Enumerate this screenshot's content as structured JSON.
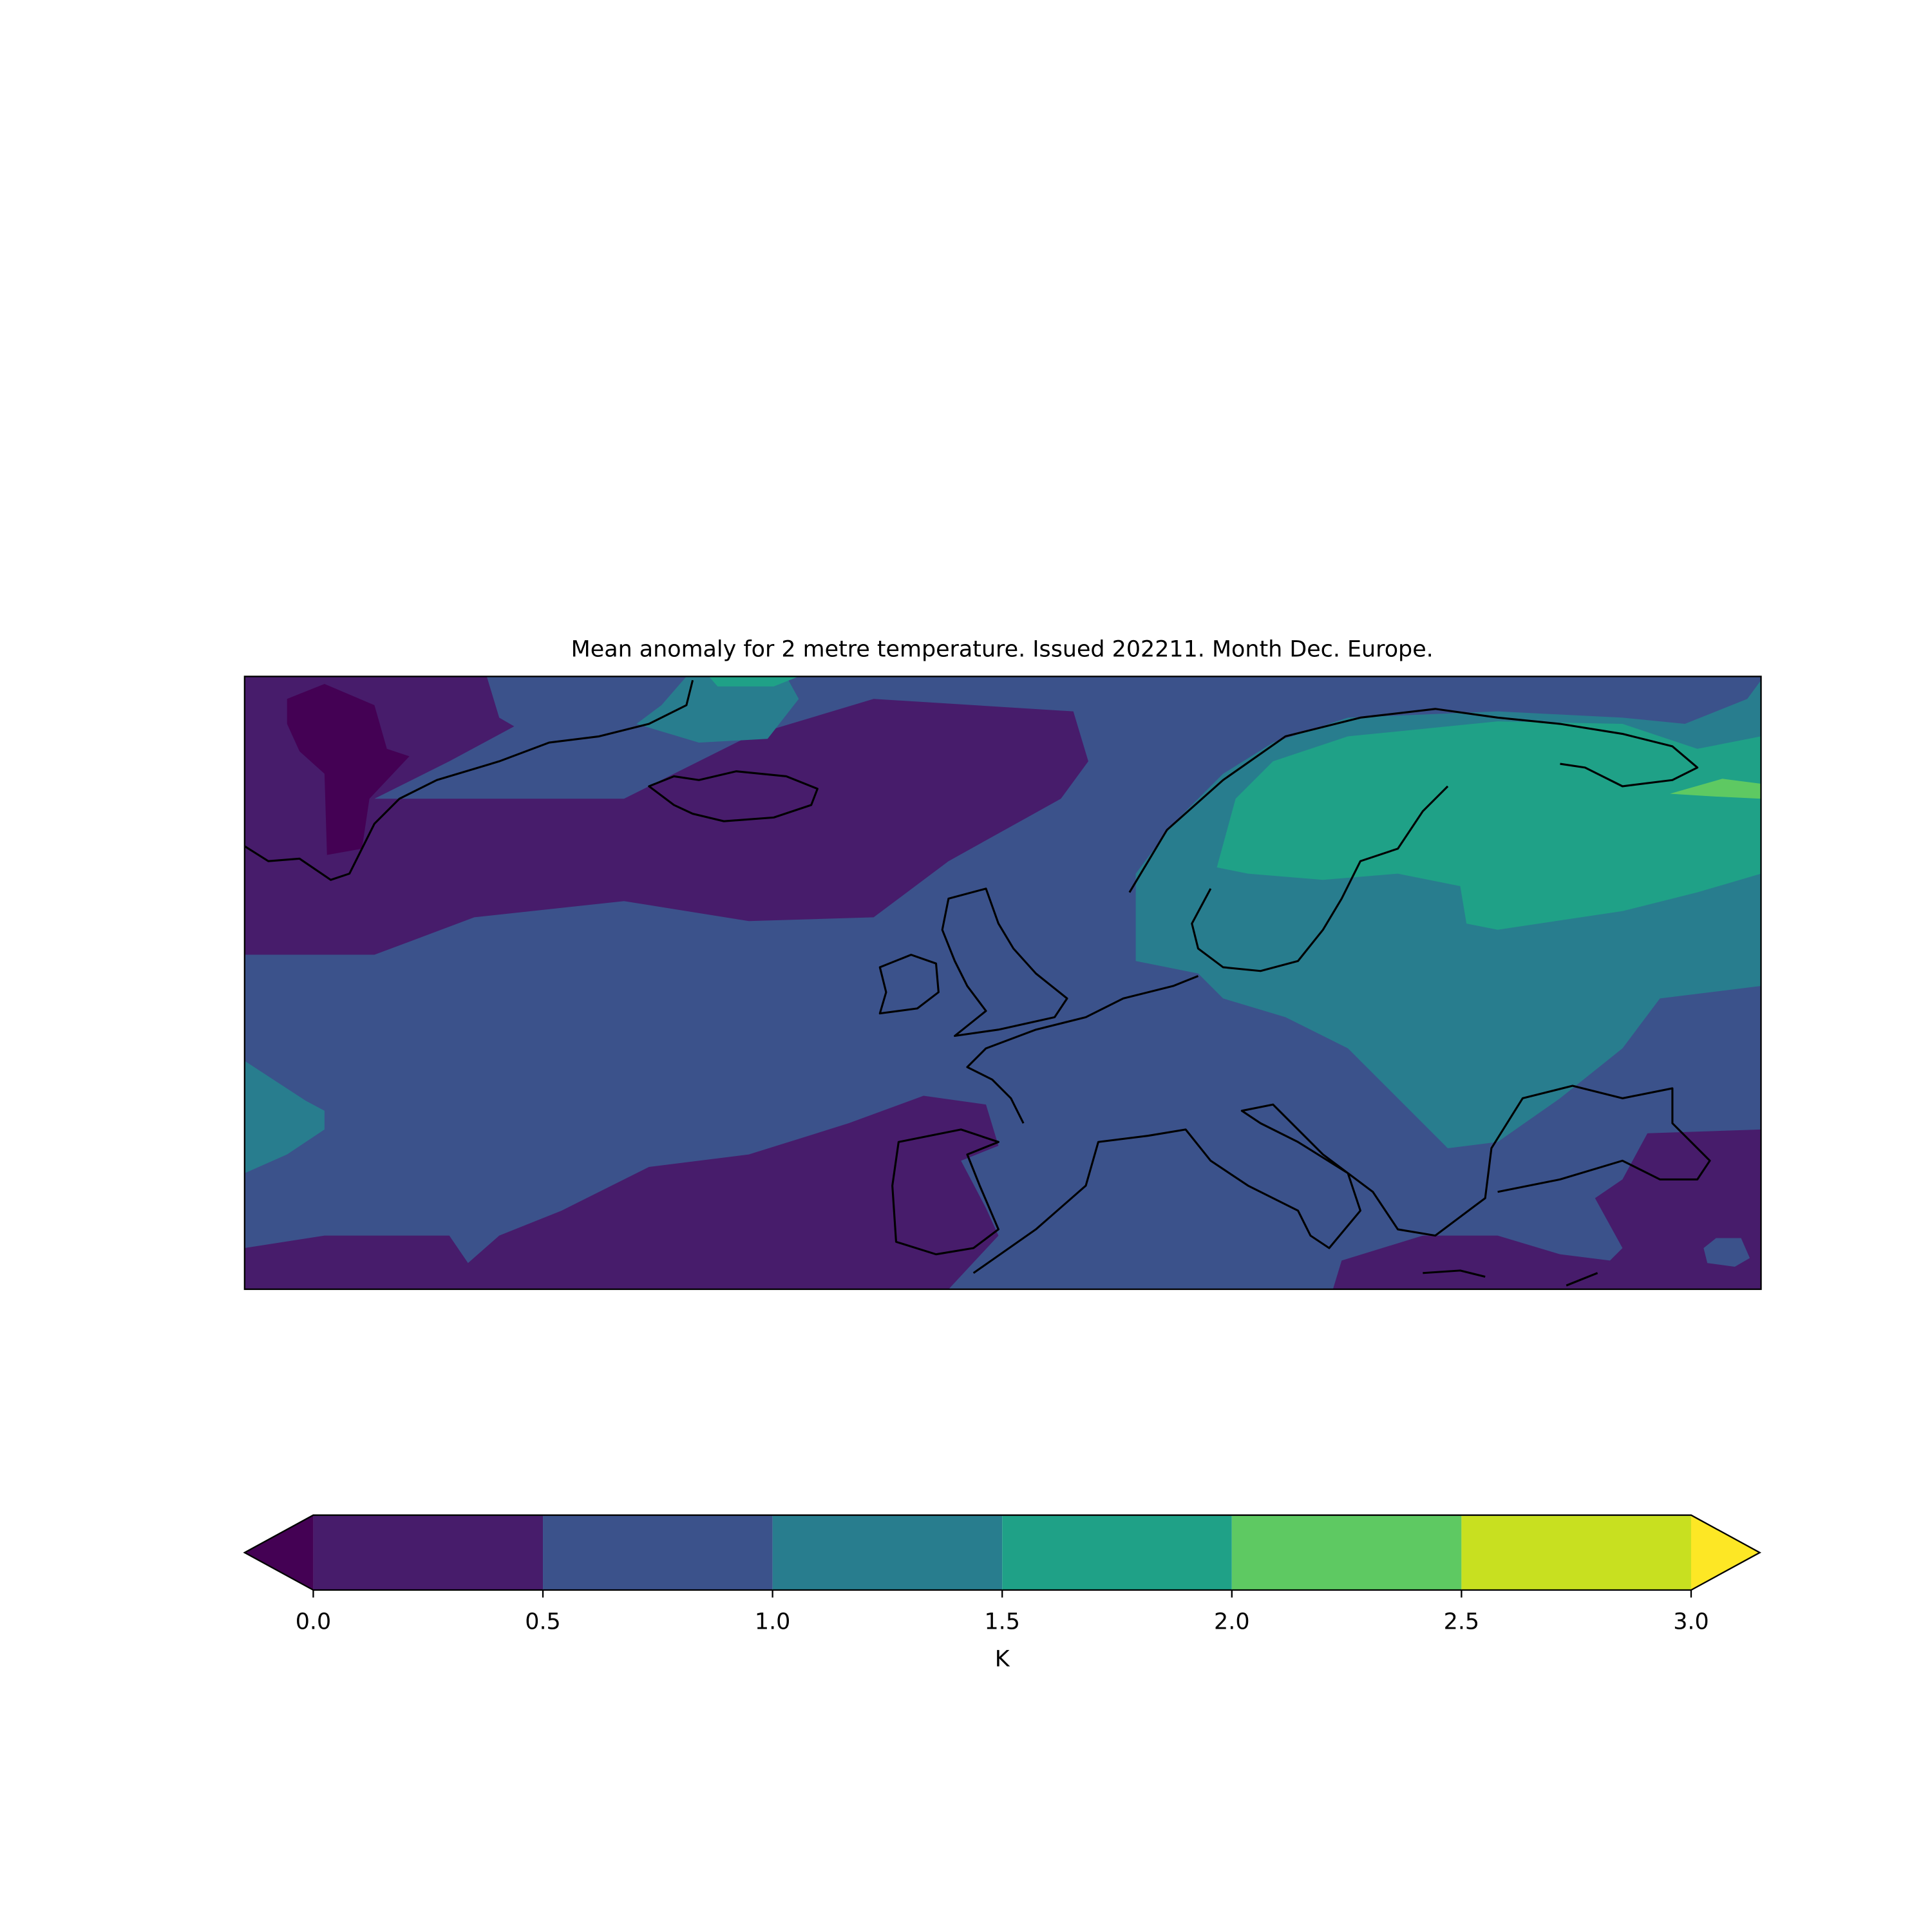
{
  "chart_data": {
    "type": "contour-map",
    "title": "Mean anomaly for 2 metre temperature. Issued 202211. Month Dec. Europe.",
    "colorbar": {
      "label": "K",
      "extend": "both",
      "xlim": [
        0,
        3
      ],
      "xticks": [
        {
          "value": 0,
          "label": "0.0"
        },
        {
          "value": 0.5,
          "label": "0.5"
        },
        {
          "value": 1,
          "label": "1.0"
        },
        {
          "value": 1.5,
          "label": "1.5"
        },
        {
          "value": 2,
          "label": "2.0"
        },
        {
          "value": 2.5,
          "label": "2.5"
        },
        {
          "value": 3,
          "label": "3.0"
        }
      ],
      "colors": [
        "#440154",
        "#471c6b",
        "#3b528b",
        "#287d8e",
        "#1fa187",
        "#5ec962",
        "#c8e020",
        "#fde725"
      ]
    }
  }
}
